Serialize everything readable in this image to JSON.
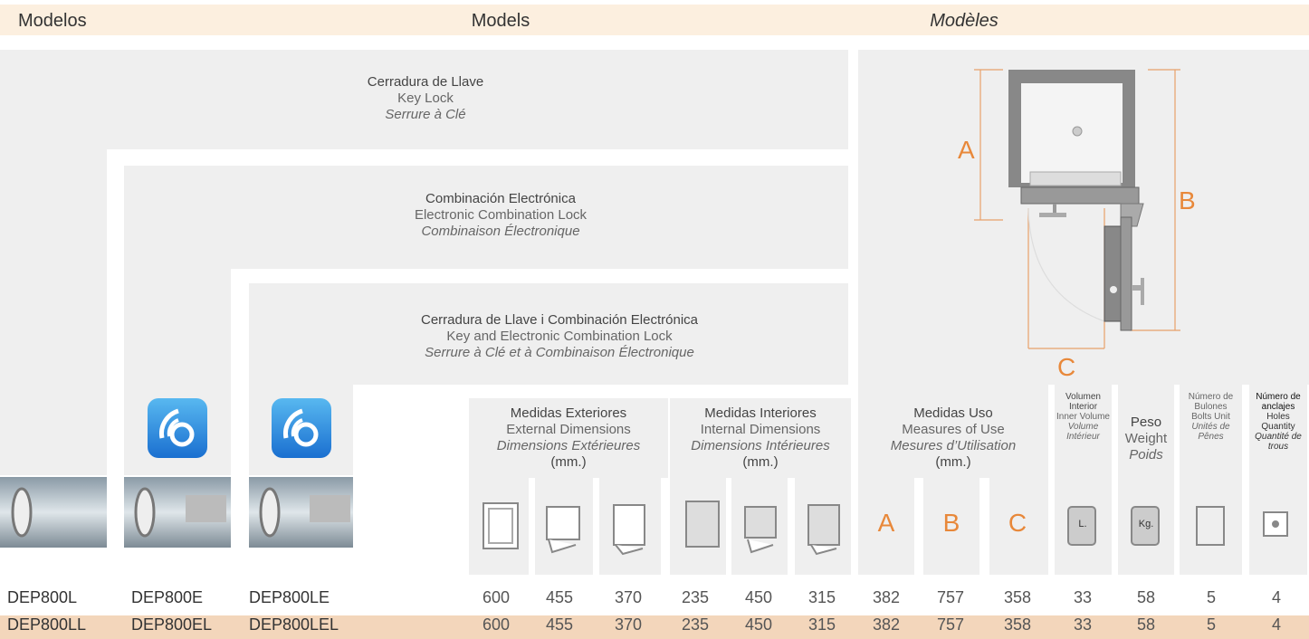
{
  "header": {
    "es": "Modelos",
    "en": "Models",
    "fr": "Modèles"
  },
  "lock_types": [
    {
      "es": "Cerradura de Llave",
      "en": "Key Lock",
      "fr": "Serrure à Clé"
    },
    {
      "es": "Combinación Electrónica",
      "en": "Electronic Combination Lock",
      "fr": "Combinaison Électronique"
    },
    {
      "es": "Cerradura de Llave i Combinación Electrónica",
      "en": "Key and Electronic Combination Lock",
      "fr": "Serrure à Clé et à Combinaison Électronique"
    }
  ],
  "diagram": {
    "labels": [
      "A",
      "B",
      "C"
    ]
  },
  "columns": [
    {
      "es": "Medidas Exteriores",
      "en": "External Dimensions",
      "fr": "Dimensions Extérieures",
      "unit": "(mm.)"
    },
    {
      "es": "Medidas Interiores",
      "en": "Internal Dimensions",
      "fr": "Dimensions Intérieures",
      "unit": "(mm.)"
    },
    {
      "es": "Medidas Uso",
      "en": "Measures of Use",
      "fr": "Mesures d’Utilisation",
      "unit": "(mm.)",
      "letters": [
        "A",
        "B",
        "C"
      ]
    },
    {
      "es": "Volumen Interior",
      "en": "Inner Volume",
      "fr": "Volume Intérieur",
      "icon": "L."
    },
    {
      "es": "Peso",
      "en": "Weight",
      "fr": "Poids",
      "icon": "Kg."
    },
    {
      "es": "Número de Bulones",
      "en": "Bolts Unit",
      "fr": "Unités de Pênes"
    },
    {
      "es": "Número de anclajes",
      "en": "Holes Quantity",
      "fr": "Quantité de trous"
    }
  ],
  "rows": [
    [
      "DEP800L",
      "DEP800E",
      "DEP800LE",
      600,
      455,
      370,
      235,
      450,
      315,
      382,
      757,
      358,
      33,
      58,
      5,
      4
    ],
    [
      "DEP800LL",
      "DEP800EL",
      "DEP800LEL",
      600,
      455,
      370,
      235,
      450,
      315,
      382,
      757,
      358,
      33,
      58,
      5,
      4
    ]
  ]
}
